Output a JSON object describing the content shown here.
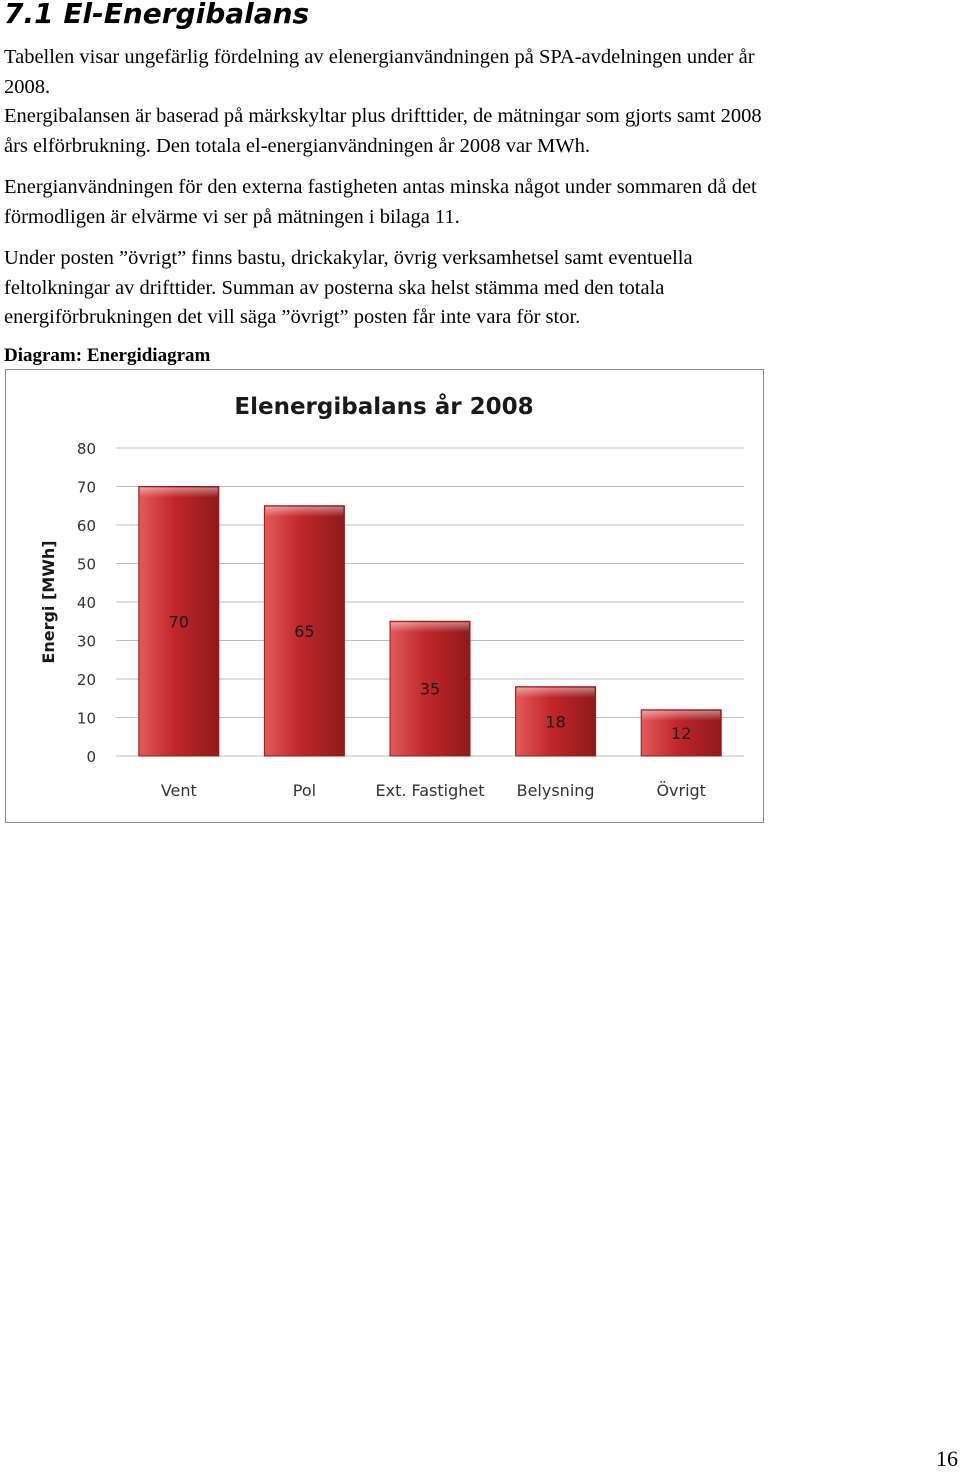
{
  "heading": "7.1  El-Energibalans",
  "paragraph1": {
    "lines": [
      "Tabellen visar ungefärlig fördelning av elenergianvändningen på SPA-avdelningen under år",
      "2008.",
      "Energibalansen är baserad på märkskyltar plus drifttider, de mätningar som gjorts samt 2008",
      "års elförbrukning. Den totala el-energianvändningen år 2008 var MWh."
    ]
  },
  "paragraph2": {
    "lines": [
      "Energianvändningen för den externa fastigheten antas minska något under sommaren då det",
      "förmodligen är elvärme vi ser på mätningen i bilaga 11."
    ]
  },
  "paragraph3": {
    "lines": [
      "Under posten ”övrigt” finns bastu, drickakylar, övrig verksamhetsel samt eventuella",
      "feltolkningar av drifttider.  Summan av posterna ska helst stämma med den totala",
      "energiförbrukningen det vill säga ”övrigt” posten får inte vara för stor."
    ]
  },
  "caption": "Diagram: Energidiagram",
  "page_number": "16",
  "colors": {
    "bar_fill": "#c0262b",
    "bar_light": "#e35a5a",
    "bar_dark": "#8f1a1c",
    "gridline": "#bfbfbf"
  },
  "chart_data": {
    "type": "bar",
    "title": "Elenergibalans år 2008",
    "ylabel": "Energi [MWh]",
    "xlabel": "",
    "categories": [
      "Vent",
      "Pol",
      "Ext. Fastighet",
      "Belysning",
      "Övrigt"
    ],
    "values": [
      70,
      65,
      35,
      18,
      12
    ],
    "ylim": [
      0,
      80
    ],
    "yticks": [
      0,
      10,
      20,
      30,
      40,
      50,
      60,
      70,
      80
    ],
    "grid": true,
    "data_labels": true
  }
}
